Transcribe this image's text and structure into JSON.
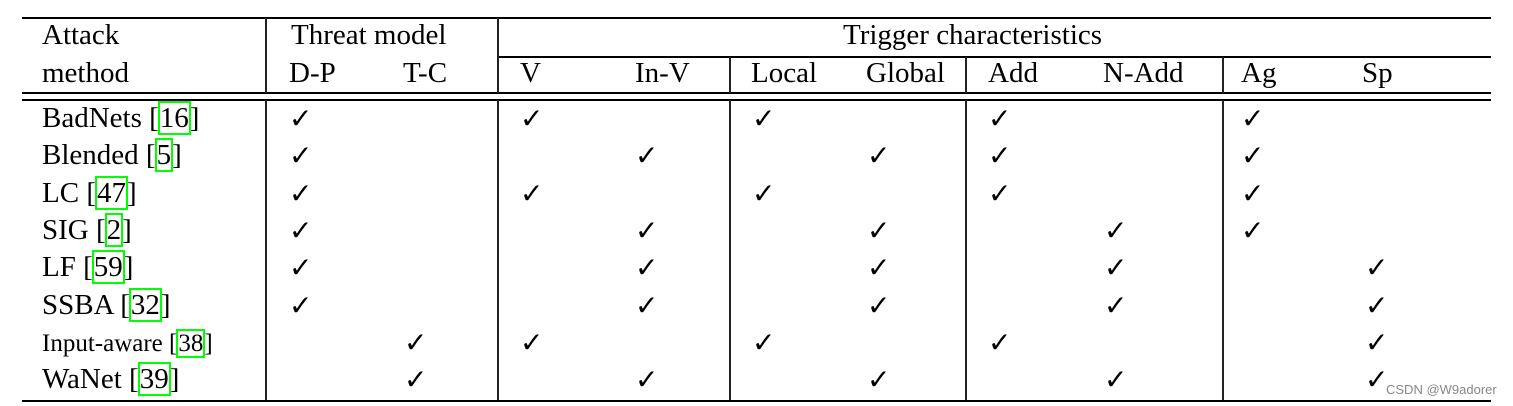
{
  "header": {
    "attack_method_line1": "Attack",
    "attack_method_line2": "method",
    "threat_model": "Threat model",
    "trigger_characteristics": "Trigger characteristics",
    "columns": [
      "D-P",
      "T-C",
      "V",
      "In-V",
      "Local",
      "Global",
      "Add",
      "N-Add",
      "Ag",
      "Sp"
    ]
  },
  "check_glyph": "✓",
  "rows": [
    {
      "name": "BadNets",
      "ref": "16",
      "checks": [
        true,
        false,
        true,
        false,
        true,
        false,
        true,
        false,
        true,
        false
      ]
    },
    {
      "name": "Blended",
      "ref": "5",
      "checks": [
        true,
        false,
        false,
        true,
        false,
        true,
        true,
        false,
        true,
        false
      ]
    },
    {
      "name": "LC",
      "ref": "47",
      "checks": [
        true,
        false,
        true,
        false,
        true,
        false,
        true,
        false,
        true,
        false
      ]
    },
    {
      "name": "SIG",
      "ref": "2",
      "checks": [
        true,
        false,
        false,
        true,
        false,
        true,
        false,
        true,
        true,
        false
      ]
    },
    {
      "name": "LF",
      "ref": "59",
      "checks": [
        true,
        false,
        false,
        true,
        false,
        true,
        false,
        true,
        false,
        true
      ]
    },
    {
      "name": "SSBA",
      "ref": "32",
      "checks": [
        true,
        false,
        false,
        true,
        false,
        true,
        false,
        true,
        false,
        true
      ]
    },
    {
      "name": "Input-aware",
      "ref": "38",
      "checks": [
        false,
        true,
        true,
        false,
        true,
        false,
        true,
        false,
        false,
        true
      ],
      "small": true
    },
    {
      "name": "WaNet",
      "ref": "39",
      "checks": [
        false,
        true,
        false,
        true,
        false,
        true,
        false,
        true,
        false,
        true
      ]
    }
  ],
  "ref_highlight_color": "#00ff00",
  "watermark": "CSDN @W9adorer"
}
